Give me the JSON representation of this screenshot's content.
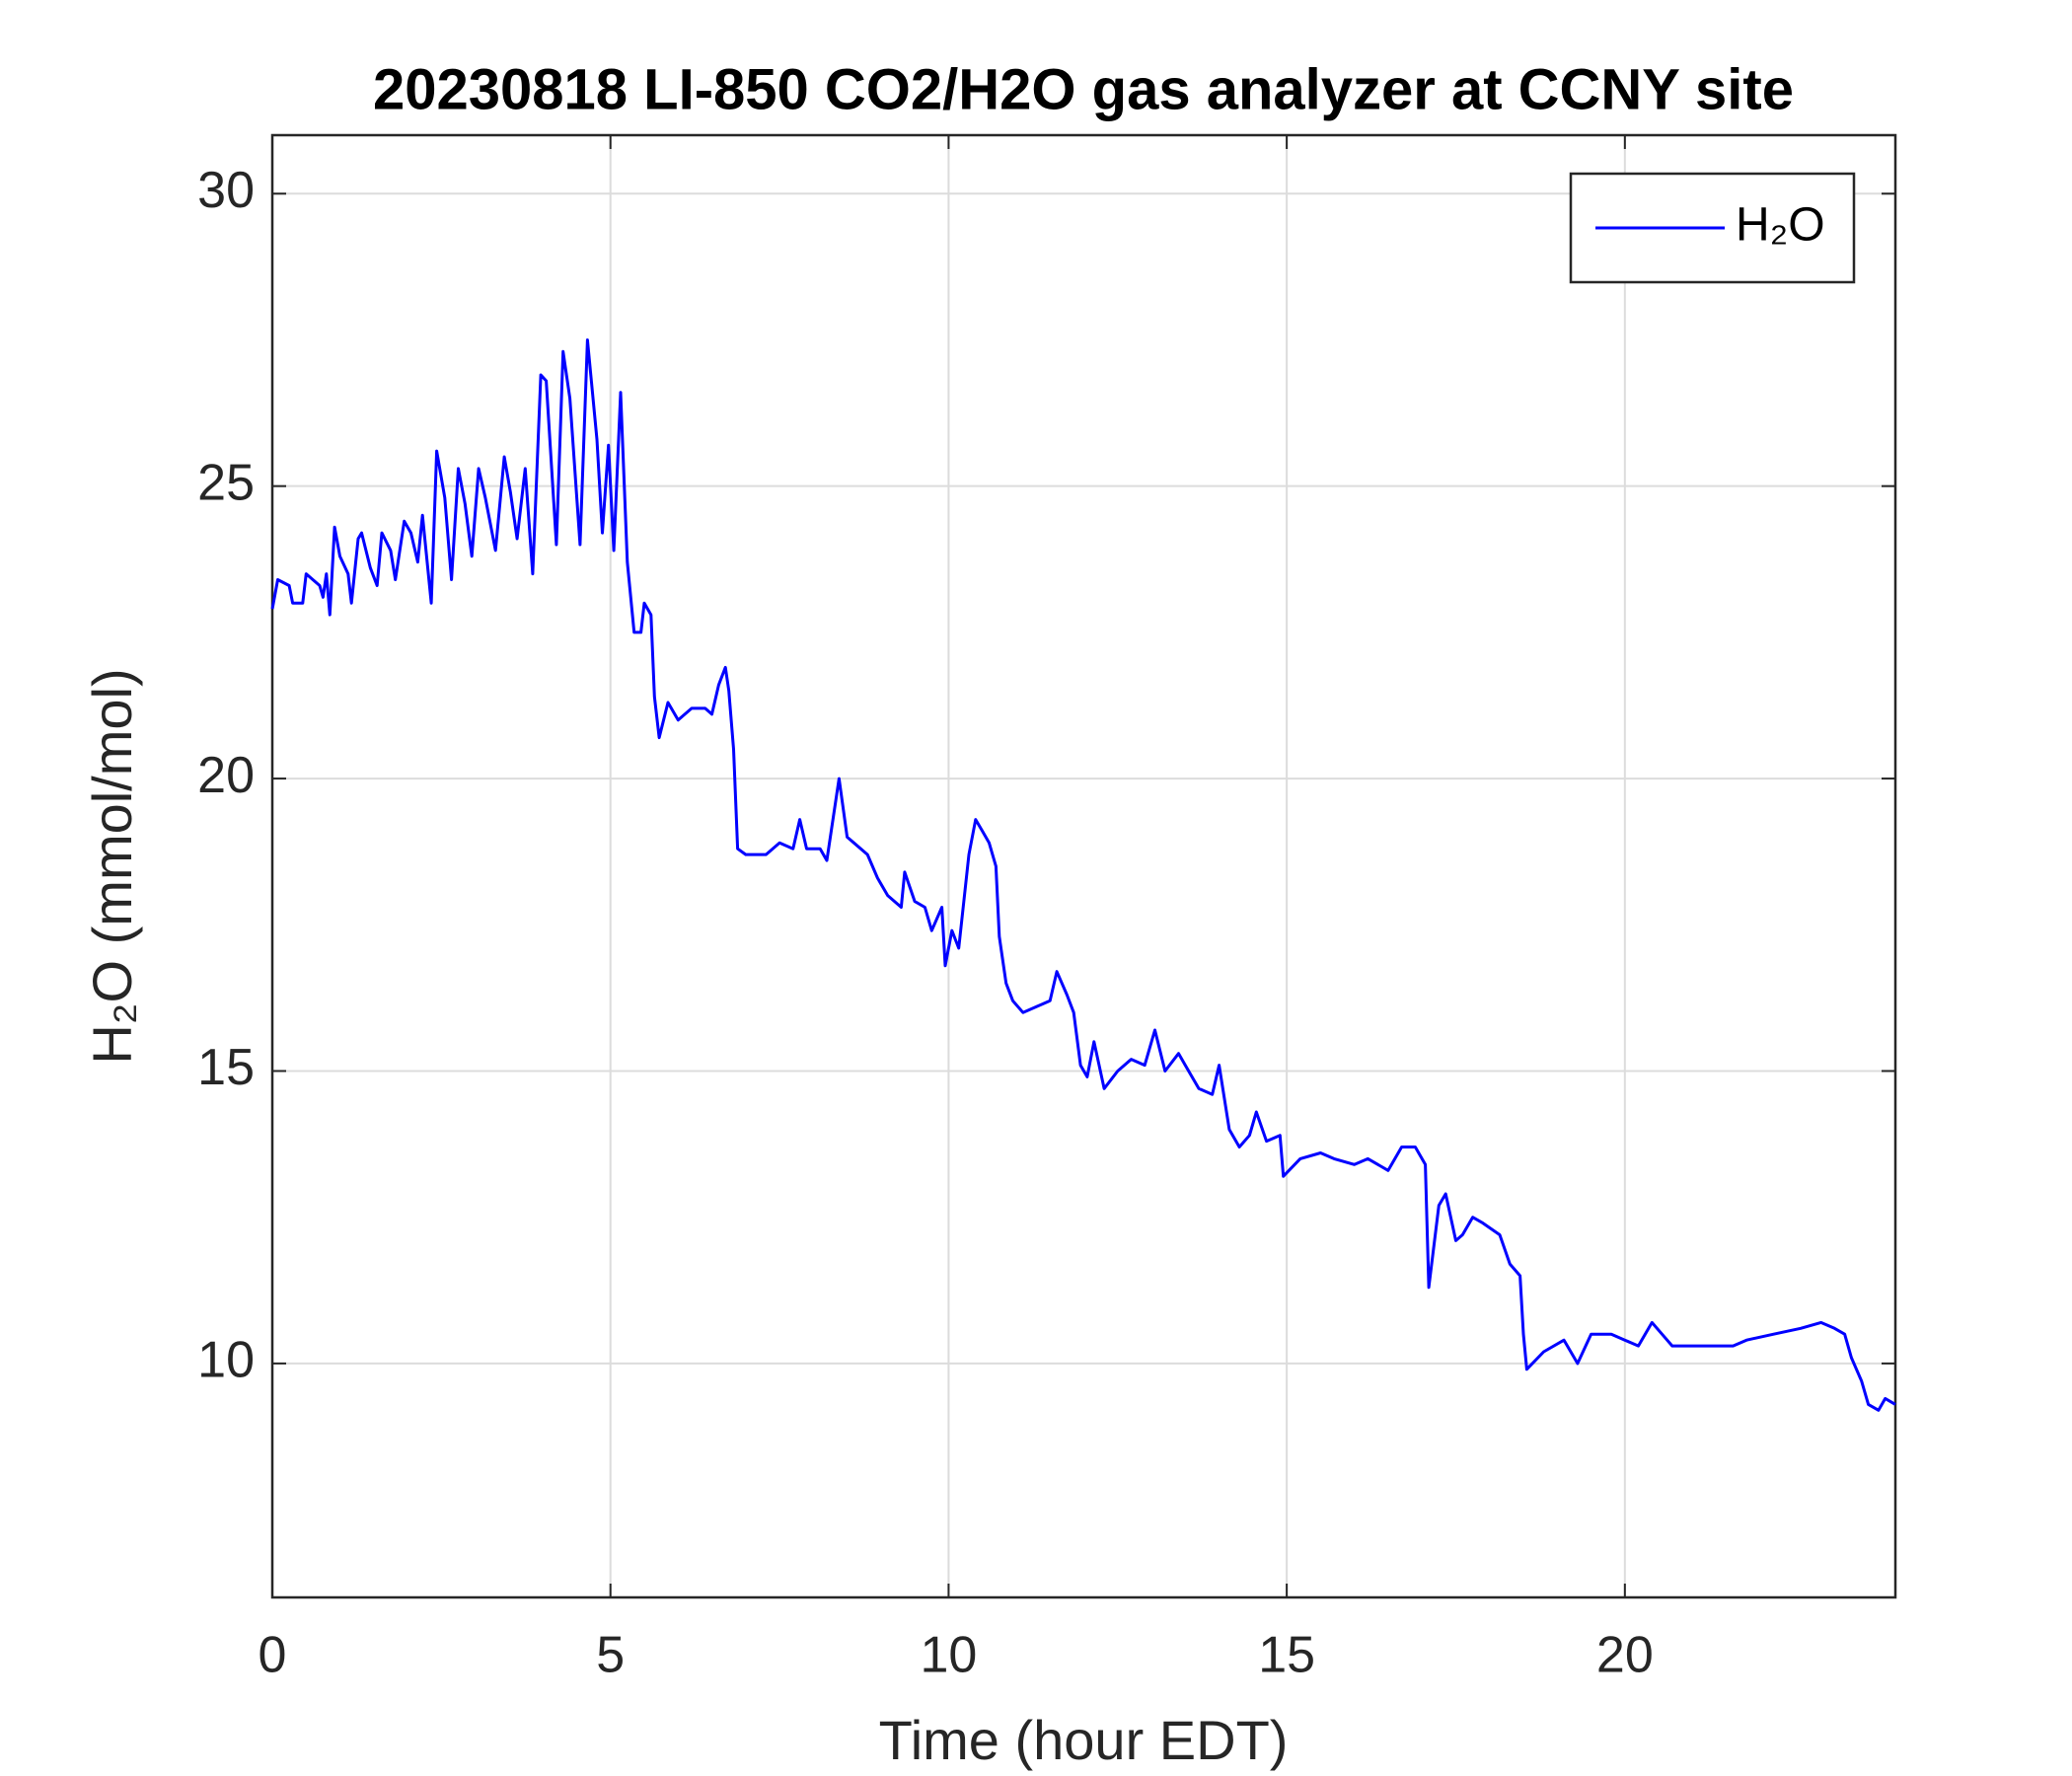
{
  "chart_data": {
    "type": "line",
    "title": "20230818 LI-850 CO2/H2O gas analyzer at CCNY site",
    "xlabel": "Time (hour EDT)",
    "ylabel": "H₂O (mmol/mol)",
    "xlim": [
      0,
      24
    ],
    "xticks": [
      0,
      5,
      10,
      15,
      20
    ],
    "ylim": [
      6,
      31
    ],
    "yticks": [
      10,
      15,
      20,
      25,
      30
    ],
    "grid": true,
    "legend": "upper right",
    "x": [
      0,
      0.08,
      0.25,
      0.3,
      0.45,
      0.5,
      0.7,
      0.75,
      0.8,
      0.85,
      0.92,
      1.0,
      1.12,
      1.17,
      1.27,
      1.32,
      1.45,
      1.55,
      1.62,
      1.75,
      1.82,
      1.95,
      2.05,
      2.15,
      2.22,
      2.35,
      2.43,
      2.55,
      2.65,
      2.75,
      2.85,
      2.95,
      3.05,
      3.15,
      3.3,
      3.43,
      3.52,
      3.62,
      3.74,
      3.85,
      3.97,
      4.05,
      4.2,
      4.3,
      4.4,
      4.55,
      4.66,
      4.8,
      4.88,
      4.97,
      5.05,
      5.15,
      5.25,
      5.35,
      5.45,
      5.5,
      5.6,
      5.65,
      5.72,
      5.85,
      6.0,
      6.2,
      6.4,
      6.5,
      6.6,
      6.7,
      6.75,
      6.82,
      6.88,
      7.0,
      7.3,
      7.5,
      7.7,
      7.8,
      7.9,
      8.1,
      8.2,
      8.38,
      8.5,
      8.6,
      8.8,
      8.95,
      9.1,
      9.3,
      9.35,
      9.5,
      9.65,
      9.75,
      9.9,
      9.95,
      10.05,
      10.15,
      10.3,
      10.4,
      10.5,
      10.6,
      10.7,
      10.75,
      10.85,
      10.95,
      11.1,
      11.3,
      11.5,
      11.6,
      11.75,
      11.85,
      11.95,
      12.05,
      12.15,
      12.3,
      12.5,
      12.7,
      12.9,
      13.05,
      13.2,
      13.4,
      13.5,
      13.7,
      13.9,
      14.0,
      14.15,
      14.3,
      14.45,
      14.55,
      14.7,
      14.9,
      14.95,
      15.2,
      15.5,
      15.7,
      16.0,
      16.2,
      16.5,
      16.7,
      16.9,
      17.05,
      17.1,
      17.25,
      17.35,
      17.5,
      17.6,
      17.75,
      17.9,
      18.15,
      18.3,
      18.45,
      18.5,
      18.55,
      18.8,
      19.1,
      19.3,
      19.5,
      19.8,
      20.0,
      20.2,
      20.4,
      20.55,
      20.7,
      21.0,
      21.3,
      21.6,
      21.8,
      22.2,
      22.6,
      22.9,
      23.1,
      23.25,
      23.35,
      23.5,
      23.6,
      23.75,
      23.85,
      24.0
    ],
    "series": [
      {
        "name": "H₂O",
        "color": "#0000ff",
        "values": [
          22.9,
          23.4,
          23.3,
          23.0,
          23.0,
          23.5,
          23.3,
          23.1,
          23.5,
          22.8,
          24.3,
          23.8,
          23.5,
          23.0,
          24.1,
          24.2,
          23.6,
          23.3,
          24.2,
          23.9,
          23.4,
          24.4,
          24.2,
          23.7,
          24.5,
          23.0,
          25.6,
          24.8,
          23.4,
          25.3,
          24.7,
          23.8,
          25.3,
          24.8,
          23.9,
          25.5,
          24.9,
          24.1,
          25.3,
          23.5,
          26.9,
          26.8,
          24.0,
          27.3,
          26.5,
          24.0,
          27.5,
          25.8,
          24.2,
          25.7,
          23.9,
          26.6,
          23.7,
          22.5,
          22.5,
          23.0,
          22.8,
          21.4,
          20.7,
          21.3,
          21.0,
          21.2,
          21.2,
          21.1,
          21.6,
          21.9,
          21.5,
          20.5,
          18.8,
          18.7,
          18.7,
          18.9,
          18.8,
          19.3,
          18.8,
          18.8,
          18.6,
          20.0,
          19.0,
          18.9,
          18.7,
          18.3,
          18.0,
          17.8,
          18.4,
          17.9,
          17.8,
          17.4,
          17.8,
          16.8,
          17.4,
          17.1,
          18.7,
          19.3,
          19.1,
          18.9,
          18.5,
          17.3,
          16.5,
          16.2,
          16.0,
          16.1,
          16.2,
          16.7,
          16.3,
          16.0,
          15.1,
          14.9,
          15.5,
          14.7,
          15.0,
          15.2,
          15.1,
          15.7,
          15.0,
          15.3,
          15.1,
          14.7,
          14.6,
          15.1,
          14.0,
          13.7,
          13.9,
          14.3,
          13.8,
          13.9,
          13.2,
          13.5,
          13.6,
          13.5,
          13.4,
          13.5,
          13.3,
          13.7,
          13.7,
          13.4,
          11.3,
          12.7,
          12.9,
          12.1,
          12.2,
          12.5,
          12.4,
          12.2,
          11.7,
          11.5,
          10.5,
          9.9,
          10.2,
          10.4,
          10.0,
          10.5,
          10.5,
          10.4,
          10.3,
          10.7,
          10.5,
          10.3,
          10.3,
          10.3,
          10.3,
          10.4,
          10.5,
          10.6,
          10.7,
          10.6,
          10.5,
          10.1,
          9.7,
          9.3,
          9.2,
          9.4,
          9.3
        ]
      }
    ]
  }
}
